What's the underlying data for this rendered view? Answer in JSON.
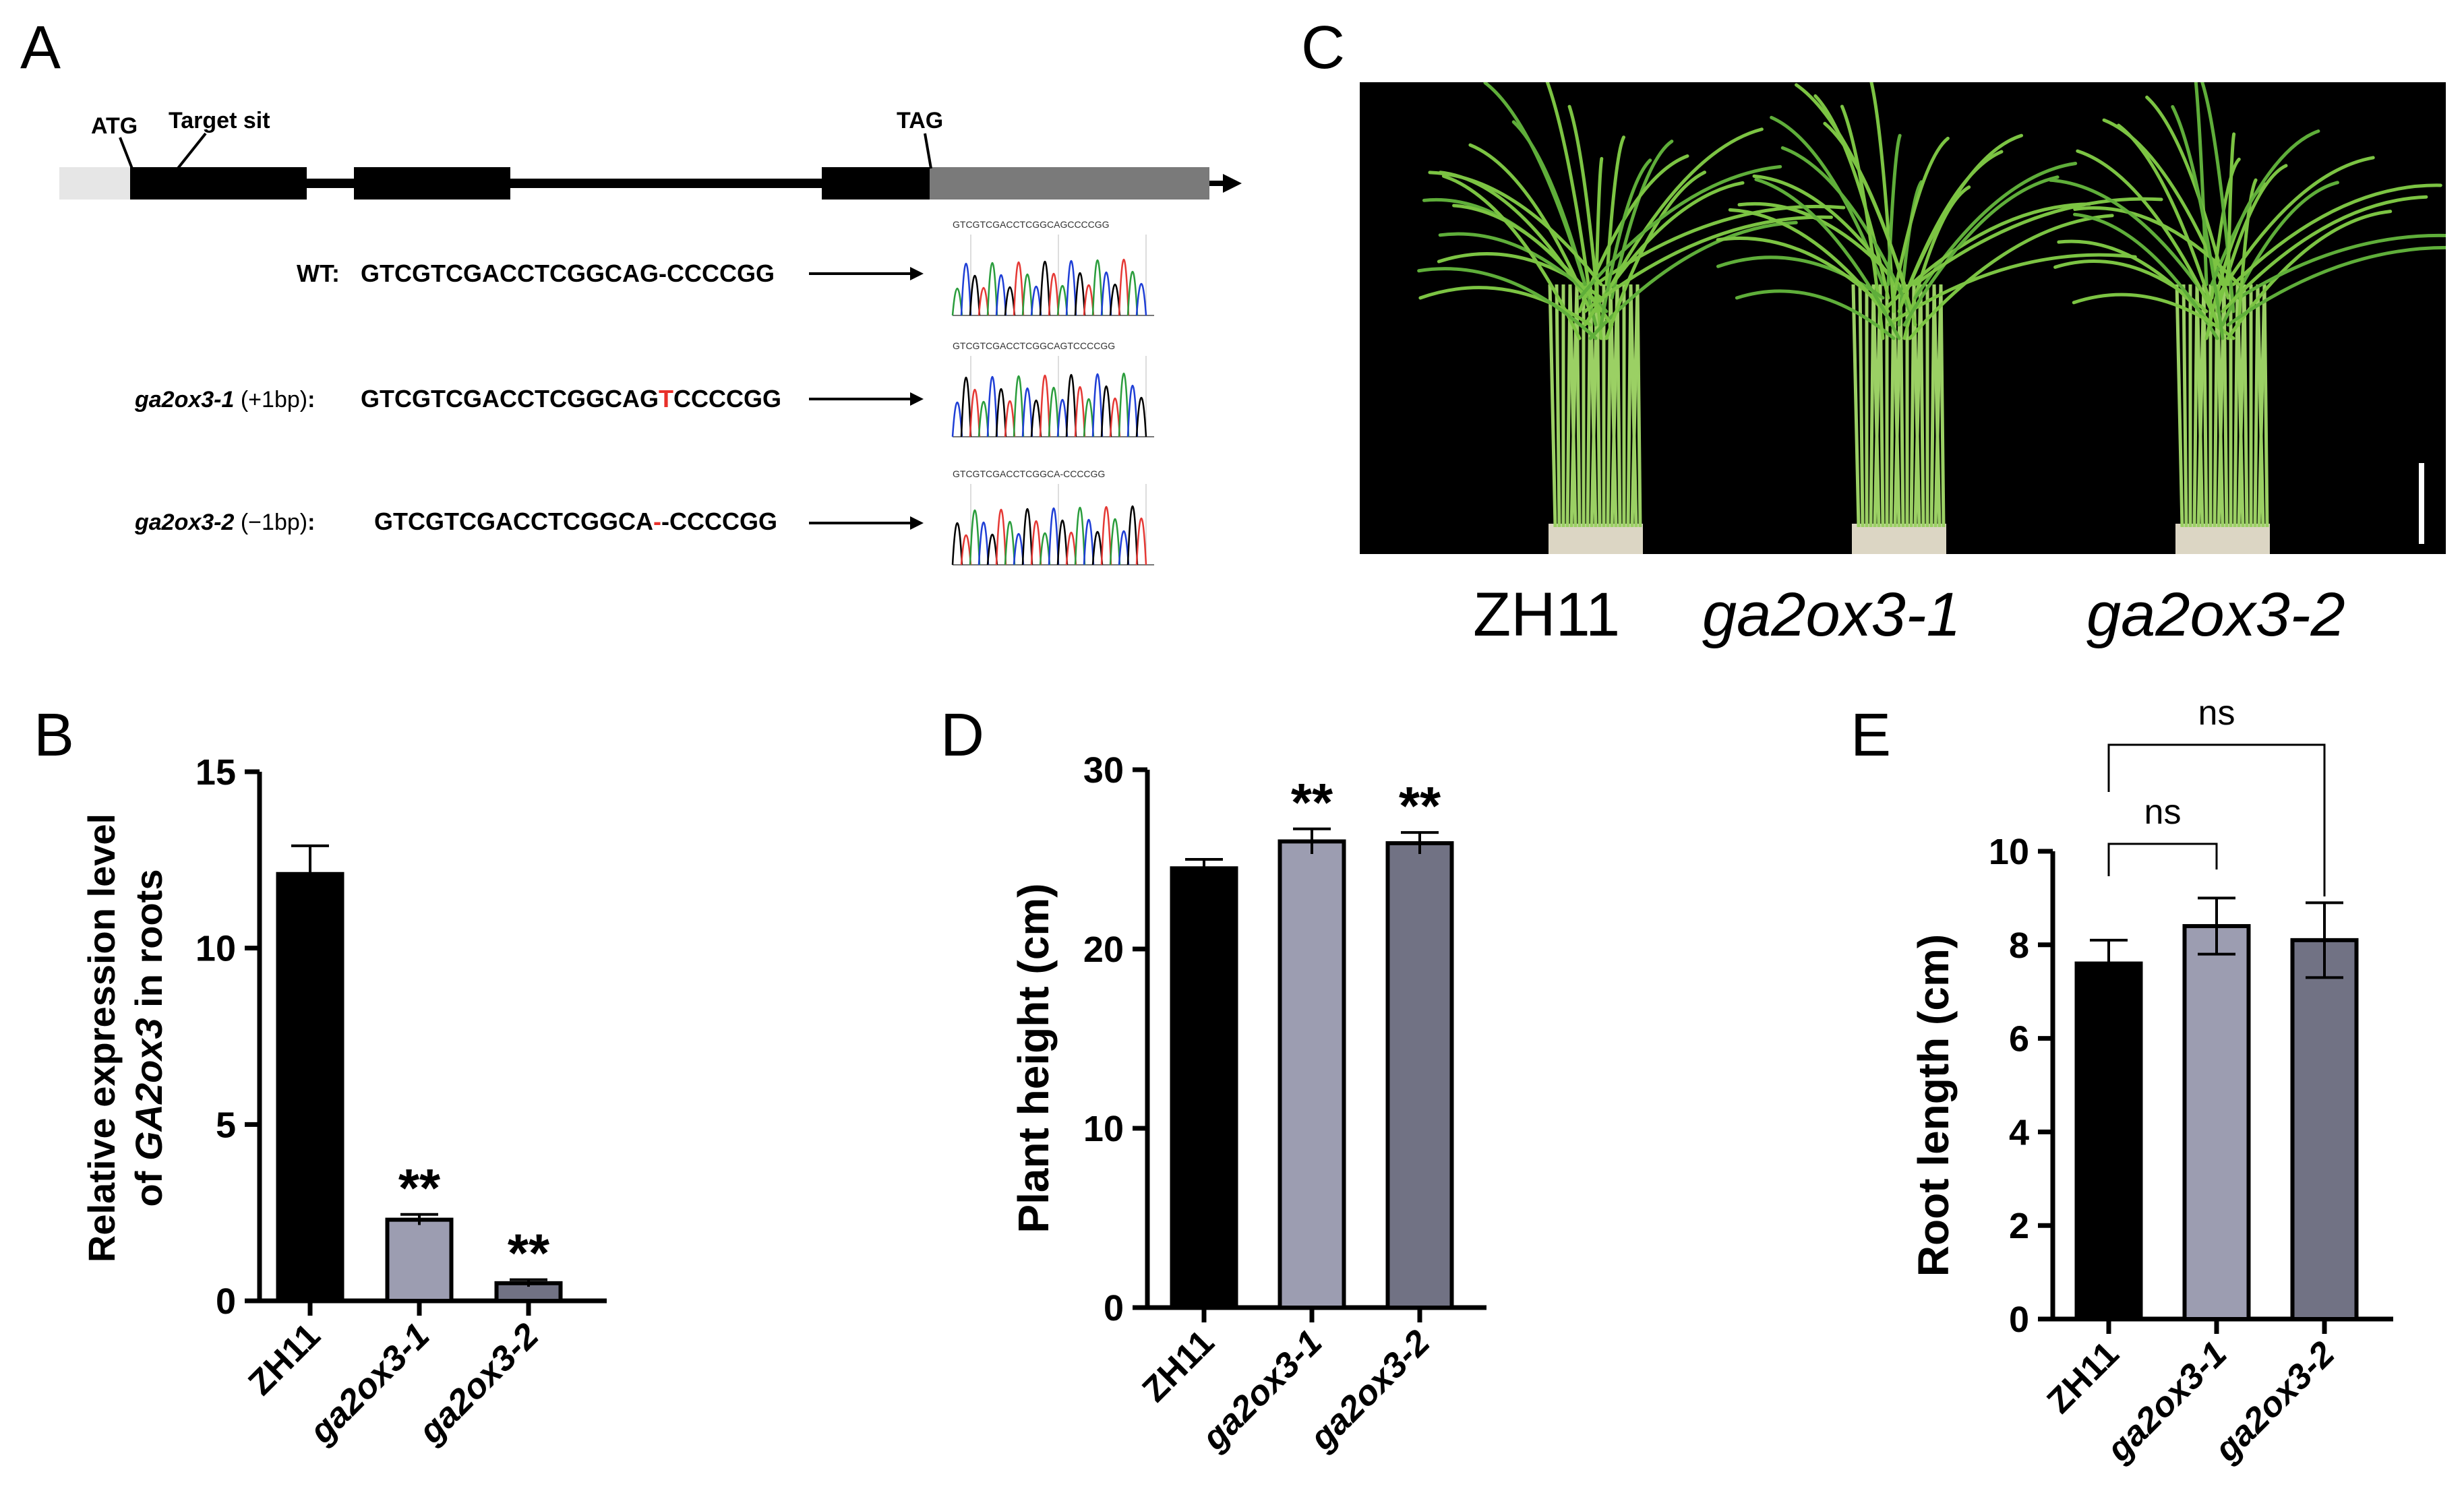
{
  "panels": {
    "a": "A",
    "b": "B",
    "c": "C",
    "d": "D",
    "e": "E"
  },
  "gene_structure": {
    "atg": "ATG",
    "target": "Target sit",
    "tag": "TAG"
  },
  "sequences": [
    {
      "genotype": "WT",
      "mutation": "",
      "colon": ":",
      "seq_pre": "GTCGTCGACCTCGGCAG",
      "seq_mark": "-",
      "seq_post": "CCCCGG",
      "trace_top": "GTCGTCGACCTCGGCAGCCCCGG"
    },
    {
      "genotype": "ga2ox3-1",
      "mutation": "(+1bp)",
      "colon": ":",
      "seq_pre": "GTCGTCGACCTCGGCAG",
      "seq_mark": "T",
      "seq_post": "CCCCGG",
      "trace_top": "GTCGTCGACCTCGGCAGTCCCCGG"
    },
    {
      "genotype": "ga2ox3-2",
      "mutation": "(−1bp)",
      "colon": ":",
      "seq_pre": "GTCGTCGACCTCGGCA",
      "seq_mark": "-",
      "seq_post": "-CCCCGG",
      "trace_top": "GTCGTCGACCTCGGCA-CCCCGG"
    }
  ],
  "photo_labels": [
    "ZH11",
    "ga2ox3-1",
    "ga2ox3-2"
  ],
  "colors": {
    "zh11": "#000000",
    "ga2ox3_1": "#9c9db1",
    "ga2ox3_2": "#717284",
    "photo_bg": "#000000",
    "plant": "#7cc443",
    "mutation_red": "#e8302a"
  },
  "chart_data": [
    {
      "type": "bar",
      "panel": "B",
      "categories": [
        "ZH11",
        "ga2ox3-1",
        "ga2ox3-2"
      ],
      "values": [
        12.1,
        2.3,
        0.5
      ],
      "errors": [
        0.8,
        0.15,
        0.1
      ],
      "significance": [
        "",
        "**",
        "**"
      ],
      "ylabel_line1": "Relative expression level",
      "ylabel_line2_pre": "of ",
      "ylabel_line2_gene": "GA2ox3",
      "ylabel_line2_post": " in roots",
      "ylim": [
        0,
        15
      ],
      "yticks": [
        "0",
        "5",
        "10",
        "15"
      ]
    },
    {
      "type": "bar",
      "panel": "D",
      "categories": [
        "ZH11",
        "ga2ox3-1",
        "ga2ox3-2"
      ],
      "values": [
        24.5,
        26.0,
        25.9
      ],
      "errors": [
        0.5,
        0.7,
        0.6
      ],
      "significance": [
        "",
        "**",
        "**"
      ],
      "ylabel": "Plant height (cm)",
      "ylim": [
        0,
        30
      ],
      "yticks": [
        "0",
        "10",
        "20",
        "30"
      ]
    },
    {
      "type": "bar",
      "panel": "E",
      "categories": [
        "ZH11",
        "ga2ox3-1",
        "ga2ox3-2"
      ],
      "values": [
        7.6,
        8.4,
        8.1
      ],
      "errors": [
        0.5,
        0.6,
        0.8
      ],
      "comparisons": [
        {
          "from": 0,
          "to": 1,
          "label": "ns"
        },
        {
          "from": 0,
          "to": 2,
          "label": "ns"
        }
      ],
      "ylabel": "Root length (cm)",
      "ylim": [
        0,
        10
      ],
      "yticks": [
        "0",
        "2",
        "4",
        "6",
        "8",
        "10"
      ]
    }
  ]
}
